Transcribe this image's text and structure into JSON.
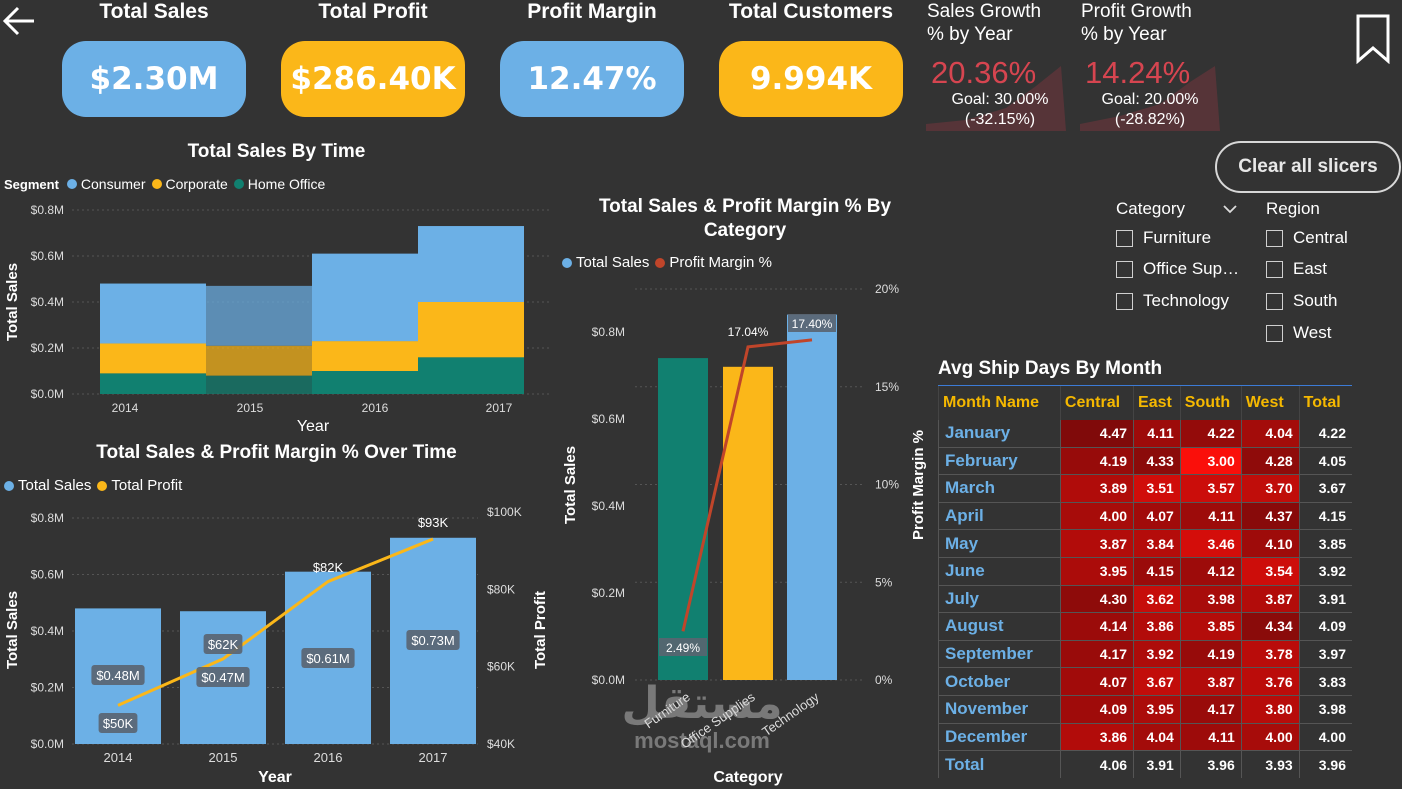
{
  "kpis": [
    {
      "title": "Total Sales",
      "value": "$2.30M",
      "color": "#6cb0e6"
    },
    {
      "title": "Total Profit",
      "value": "$286.40K",
      "color": "#fbb719"
    },
    {
      "title": "Profit Margin",
      "value": "12.47%",
      "color": "#6cb0e6"
    },
    {
      "title": "Total Customers",
      "value": "9.994K",
      "color": "#fbb719"
    }
  ],
  "growth": [
    {
      "title_line1": "Sales Growth",
      "title_line2": "% by Year",
      "value": "20.36%",
      "goal": "Goal: 30.00%",
      "diff": "(-32.15%)"
    },
    {
      "title_line1": "Profit Growth",
      "title_line2": "% by Year",
      "value": "14.24%",
      "goal": "Goal: 20.00%",
      "diff": "(-28.82%)"
    }
  ],
  "clear_button": "Clear all slicers",
  "slicers": {
    "category": {
      "title": "Category",
      "items": [
        "Furniture",
        "Office Sup…",
        "Technology"
      ]
    },
    "region": {
      "title": "Region",
      "items": [
        "Central",
        "East",
        "South",
        "West"
      ]
    }
  },
  "colors": {
    "blue": "#6cb0e6",
    "yellow": "#fbb719",
    "teal": "#118070",
    "red_line": "#c0452a",
    "negative": "#d64550"
  },
  "chart_data": [
    {
      "type": "area",
      "title": "Total Sales By Time",
      "legend_title": "Segment",
      "x": [
        "2014",
        "2015",
        "2016",
        "2017"
      ],
      "xlabel": "Year",
      "ylabel": "Total Sales",
      "yticks": [
        "$0.0M",
        "$0.2M",
        "$0.4M",
        "$0.6M",
        "$0.8M"
      ],
      "ylim": [
        0,
        0.8
      ],
      "stacked": true,
      "series": [
        {
          "name": "Home Office",
          "values": [
            0.09,
            0.08,
            0.1,
            0.16
          ],
          "color": "#118070"
        },
        {
          "name": "Corporate",
          "values": [
            0.13,
            0.13,
            0.13,
            0.24
          ],
          "color": "#fbb719"
        },
        {
          "name": "Consumer",
          "values": [
            0.26,
            0.26,
            0.38,
            0.33
          ],
          "color": "#6cb0e6"
        }
      ],
      "legend_order": [
        "Consumer",
        "Corporate",
        "Home Office"
      ]
    },
    {
      "type": "bar",
      "title": "Total Sales & Profit Margin % Over Time",
      "categories": [
        "2014",
        "2015",
        "2016",
        "2017"
      ],
      "xlabel": "Year",
      "ylabel": "Total Sales",
      "y2label": "Total Profit",
      "yticks": [
        "$0.0M",
        "$0.2M",
        "$0.4M",
        "$0.6M",
        "$0.8M"
      ],
      "y2ticks": [
        "$40K",
        "$60K",
        "$80K",
        "$100K"
      ],
      "ylim": [
        0,
        0.8
      ],
      "y2lim": [
        40,
        100
      ],
      "series": [
        {
          "name": "Total Sales",
          "values": [
            0.48,
            0.47,
            0.61,
            0.73
          ],
          "labels": [
            "$0.48M",
            "$0.47M",
            "$0.61M",
            "$0.73M"
          ],
          "color": "#6cb0e6"
        },
        {
          "name": "Total Profit",
          "values": [
            50,
            62,
            82,
            93
          ],
          "labels": [
            "$50K",
            "$62K",
            "$82K",
            "$93K"
          ],
          "color": "#fbb719"
        }
      ]
    },
    {
      "type": "bar",
      "title": "Total Sales & Profit Margin % By Category",
      "categories": [
        "Furniture",
        "Office Supplies",
        "Technology"
      ],
      "xlabel": "Category",
      "ylabel": "Total Sales",
      "y2label": "Profit Margin %",
      "yticks": [
        "$0.0M",
        "$0.2M",
        "$0.4M",
        "$0.6M",
        "$0.8M"
      ],
      "y2ticks": [
        "0%",
        "5%",
        "10%",
        "15%",
        "20%"
      ],
      "ylim": [
        0,
        0.8
      ],
      "y2lim": [
        0,
        20
      ],
      "series": [
        {
          "name": "Total Sales",
          "values": [
            0.74,
            0.72,
            0.84
          ],
          "colors": [
            "#118070",
            "#fbb719",
            "#6cb0e6"
          ],
          "color": "#6cb0e6"
        },
        {
          "name": "Profit Margin %",
          "values": [
            2.49,
            17.04,
            17.4
          ],
          "labels": [
            "2.49%",
            "17.04%",
            "17.40%"
          ],
          "color": "#c0452a"
        }
      ]
    },
    {
      "type": "heatmap",
      "title": "Avg Ship Days By Month",
      "columns": [
        "Month Name",
        "Central",
        "East",
        "South",
        "West",
        "Total"
      ],
      "rows": [
        [
          "January",
          "4.47",
          "4.11",
          "4.22",
          "4.04",
          "4.22"
        ],
        [
          "February",
          "4.19",
          "4.33",
          "3.00",
          "4.28",
          "4.05"
        ],
        [
          "March",
          "3.89",
          "3.51",
          "3.57",
          "3.70",
          "3.67"
        ],
        [
          "April",
          "4.00",
          "4.07",
          "4.11",
          "4.37",
          "4.15"
        ],
        [
          "May",
          "3.87",
          "3.84",
          "3.46",
          "4.10",
          "3.85"
        ],
        [
          "June",
          "3.95",
          "4.15",
          "4.12",
          "3.54",
          "3.92"
        ],
        [
          "July",
          "4.30",
          "3.62",
          "3.98",
          "3.87",
          "3.91"
        ],
        [
          "August",
          "4.14",
          "3.86",
          "3.85",
          "4.34",
          "4.09"
        ],
        [
          "September",
          "4.17",
          "3.92",
          "4.19",
          "3.78",
          "3.97"
        ],
        [
          "October",
          "4.07",
          "3.67",
          "3.87",
          "3.76",
          "3.83"
        ],
        [
          "November",
          "4.09",
          "3.95",
          "4.17",
          "3.80",
          "3.98"
        ],
        [
          "December",
          "3.86",
          "4.04",
          "4.11",
          "4.00",
          "4.00"
        ]
      ],
      "total_row": [
        "Total",
        "4.06",
        "3.91",
        "3.96",
        "3.93",
        "3.96"
      ]
    }
  ],
  "watermark": {
    "arabic": "مستقل",
    "latin": "mostaql.com"
  }
}
